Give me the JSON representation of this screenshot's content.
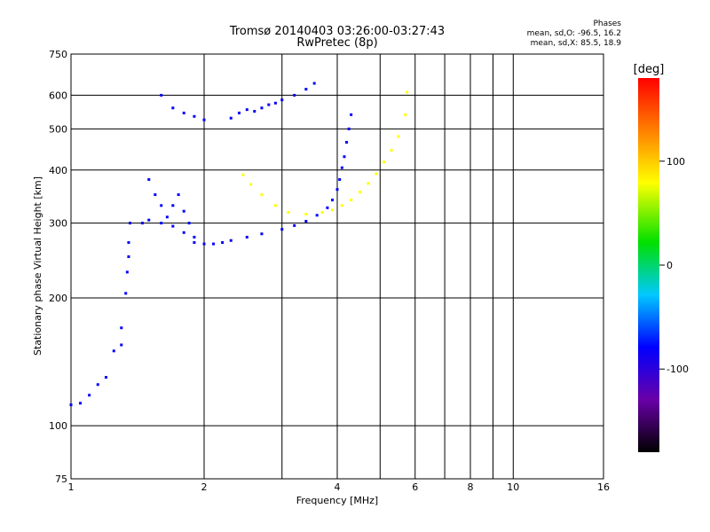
{
  "header": {
    "title_line1": "Tromsø 20140403 03:26:00-03:27:43",
    "title_line2": "RwPretec (8p)"
  },
  "phases": {
    "title": "Phases",
    "o_mode": "mean, sd,O: -96.5, 16.2",
    "x_mode": "mean, sd,X:  85.5, 18.9"
  },
  "colorbar": {
    "label": "[deg]",
    "range": [
      -180,
      180
    ],
    "ticks": [
      100,
      0,
      -100
    ]
  },
  "chart_data": {
    "type": "scatter",
    "xlabel": "Frequency [MHz]",
    "ylabel": "Stationary phase Virtual Height [km]",
    "x_scale": "log",
    "y_scale": "log",
    "xlim": [
      1,
      16
    ],
    "ylim": [
      75,
      750
    ],
    "x_ticks": [
      1,
      2,
      4,
      6,
      8,
      10,
      16
    ],
    "y_ticks": [
      75,
      100,
      200,
      300,
      400,
      500,
      600,
      750
    ],
    "grid": true,
    "colorscale": "rainbow",
    "traces": [
      {
        "mode": "O",
        "phase": -95,
        "points": [
          [
            1.9,
            270
          ],
          [
            2.0,
            268
          ],
          [
            2.1,
            268
          ],
          [
            2.2,
            270
          ],
          [
            2.3,
            273
          ],
          [
            2.5,
            278
          ],
          [
            2.7,
            283
          ],
          [
            3.0,
            290
          ],
          [
            3.2,
            296
          ],
          [
            3.4,
            303
          ],
          [
            3.6,
            313
          ],
          [
            3.8,
            326
          ],
          [
            3.9,
            340
          ],
          [
            4.0,
            360
          ],
          [
            4.05,
            380
          ],
          [
            4.1,
            405
          ],
          [
            4.15,
            430
          ],
          [
            4.2,
            465
          ],
          [
            4.25,
            500
          ],
          [
            4.3,
            540
          ]
        ]
      },
      {
        "mode": "O",
        "phase": -95,
        "points": [
          [
            1.45,
            300
          ],
          [
            1.5,
            305
          ],
          [
            1.6,
            300
          ],
          [
            1.7,
            295
          ],
          [
            1.8,
            285
          ],
          [
            1.9,
            278
          ]
        ]
      },
      {
        "mode": "O",
        "phase": -95,
        "points": [
          [
            1.5,
            380
          ],
          [
            1.55,
            350
          ],
          [
            1.6,
            330
          ],
          [
            1.65,
            310
          ],
          [
            1.7,
            330
          ],
          [
            1.75,
            350
          ],
          [
            1.8,
            320
          ],
          [
            1.85,
            300
          ]
        ]
      },
      {
        "mode": "O",
        "phase": -95,
        "points": [
          [
            1.6,
            600
          ],
          [
            1.7,
            560
          ],
          [
            1.8,
            545
          ],
          [
            1.9,
            535
          ],
          [
            2.0,
            525
          ]
        ]
      },
      {
        "mode": "O",
        "phase": -95,
        "points": [
          [
            2.3,
            530
          ],
          [
            2.4,
            545
          ],
          [
            2.5,
            555
          ],
          [
            2.6,
            550
          ],
          [
            2.7,
            560
          ],
          [
            2.8,
            570
          ],
          [
            2.9,
            575
          ],
          [
            3.0,
            585
          ],
          [
            3.2,
            600
          ],
          [
            3.4,
            620
          ],
          [
            3.55,
            640
          ]
        ]
      },
      {
        "mode": "O",
        "phase": -95,
        "points": [
          [
            1.0,
            112
          ],
          [
            1.05,
            113
          ],
          [
            1.1,
            118
          ],
          [
            1.15,
            125
          ],
          [
            1.2,
            130
          ],
          [
            1.25,
            150
          ],
          [
            1.3,
            155
          ],
          [
            1.3,
            170
          ]
        ]
      },
      {
        "mode": "O",
        "phase": -95,
        "points": [
          [
            1.33,
            205
          ],
          [
            1.34,
            230
          ],
          [
            1.35,
            250
          ],
          [
            1.35,
            270
          ],
          [
            1.36,
            300
          ]
        ]
      },
      {
        "mode": "X",
        "phase": 85,
        "points": [
          [
            2.45,
            390
          ],
          [
            2.55,
            370
          ],
          [
            2.7,
            350
          ],
          [
            2.9,
            330
          ],
          [
            3.1,
            318
          ],
          [
            3.4,
            315
          ],
          [
            3.7,
            318
          ],
          [
            3.9,
            322
          ],
          [
            4.1,
            330
          ],
          [
            4.3,
            340
          ],
          [
            4.5,
            355
          ],
          [
            4.7,
            372
          ],
          [
            4.9,
            392
          ],
          [
            5.1,
            418
          ],
          [
            5.3,
            445
          ],
          [
            5.5,
            480
          ],
          [
            5.7,
            540
          ],
          [
            5.75,
            610
          ]
        ]
      }
    ]
  }
}
